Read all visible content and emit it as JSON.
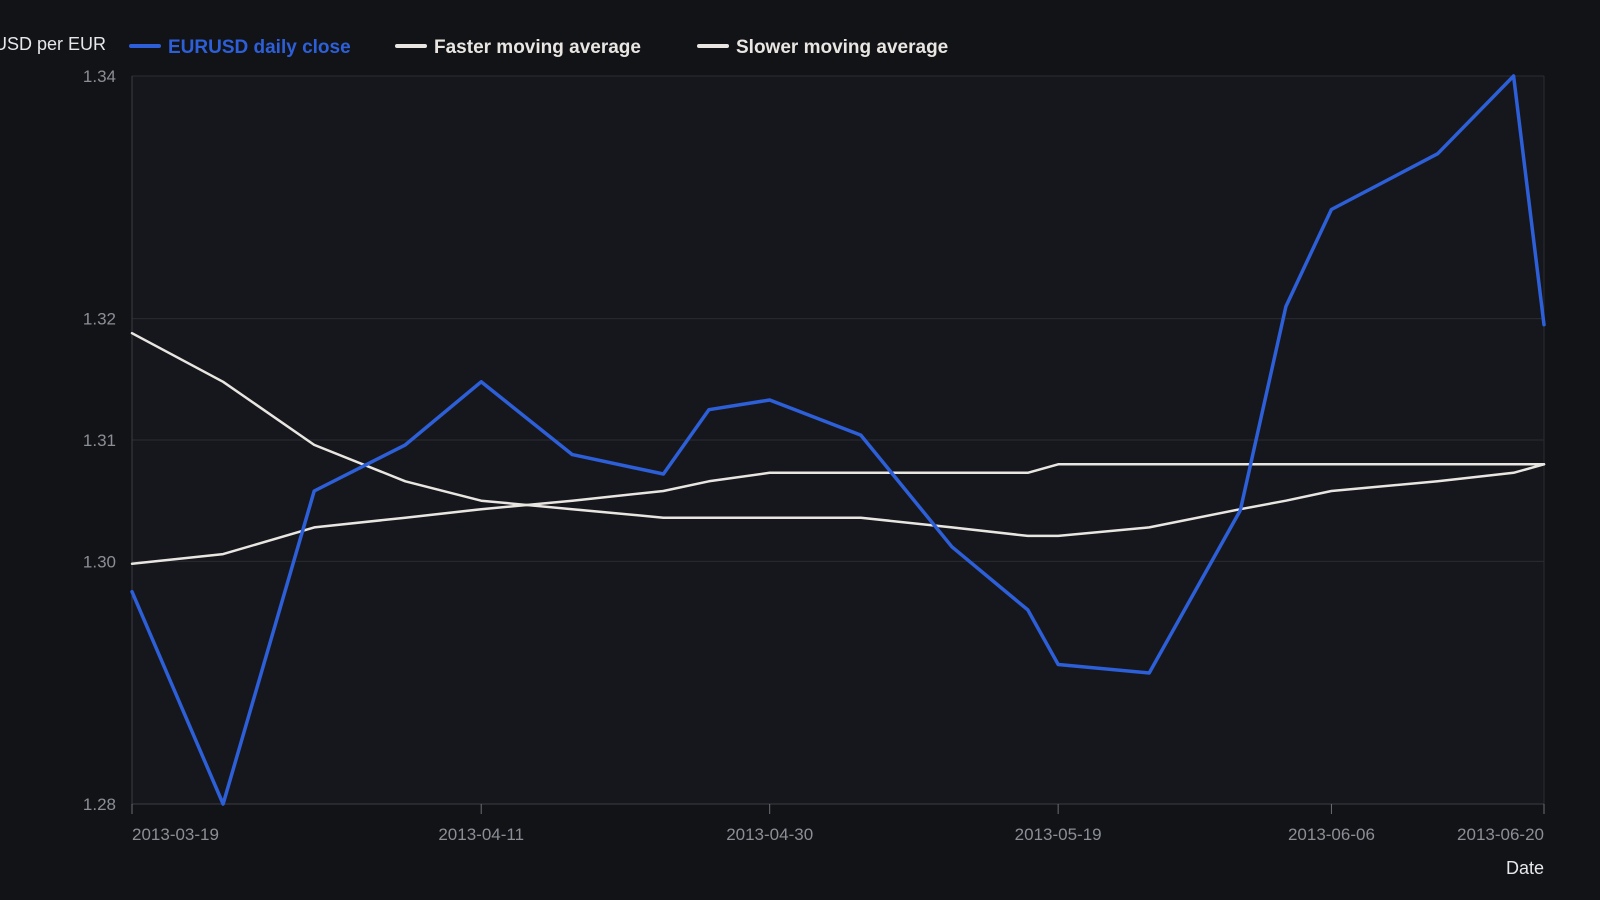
{
  "chart_data": {
    "type": "line",
    "title": "",
    "xlabel": "Date",
    "ylabel": "USD per EUR",
    "x": [
      "2013-03-19",
      "2013-03-25",
      "2013-03-31",
      "2013-04-06",
      "2013-04-11",
      "2013-04-17",
      "2013-04-23",
      "2013-04-26",
      "2013-04-30",
      "2013-05-06",
      "2013-05-12",
      "2013-05-17",
      "2013-05-19",
      "2013-05-25",
      "2013-05-31",
      "2013-06-03",
      "2013-06-06",
      "2013-06-13",
      "2013-06-18",
      "2013-06-20"
    ],
    "x_ticks": [
      "2013-03-19",
      "2013-04-11",
      "2013-04-30",
      "2013-05-19",
      "2013-06-06",
      "2013-06-20"
    ],
    "y_ticks": [
      1.28,
      1.3,
      1.31,
      1.32,
      1.34
    ],
    "ylim": [
      1.28,
      1.34
    ],
    "grid": true,
    "legend_position": "top-left",
    "series": [
      {
        "name": "EURUSD daily close",
        "color": "#2d5fd8",
        "values": [
          1.2975,
          1.28,
          1.3058,
          1.3096,
          1.3148,
          1.3088,
          1.3072,
          1.3125,
          1.3133,
          1.3104,
          1.3012,
          1.296,
          1.2915,
          1.2908,
          1.3042,
          1.321,
          1.329,
          1.3336,
          1.34,
          1.3195
        ]
      },
      {
        "name": "Faster moving average",
        "color": "#e9e6e2",
        "values": [
          1.3188,
          1.3148,
          1.3096,
          1.3066,
          1.305,
          1.3043,
          1.3036,
          1.3036,
          1.3036,
          1.3036,
          1.3028,
          1.3021,
          1.3021,
          1.3028,
          1.3043,
          1.305,
          1.3058,
          1.3066,
          1.3073,
          1.308
        ]
      },
      {
        "name": "Slower moving average",
        "color": "#e9e6e2",
        "values": [
          1.2998,
          1.3006,
          1.3028,
          1.3036,
          1.3043,
          1.305,
          1.3058,
          1.3066,
          1.3073,
          1.3073,
          1.3073,
          1.3073,
          1.308,
          1.308,
          1.308,
          1.308,
          1.308,
          1.308,
          1.308,
          1.308
        ]
      }
    ]
  }
}
